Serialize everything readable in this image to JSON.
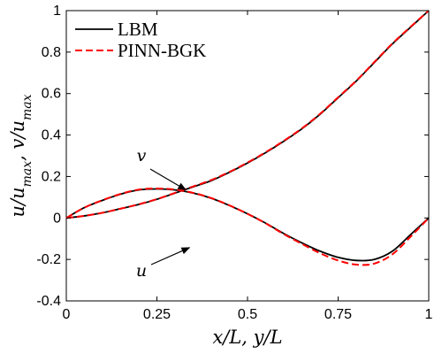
{
  "chart_data": {
    "type": "line",
    "xlabel": "x/L, y/L",
    "ylabel": "u/u_max, v/u_max",
    "xlim": [
      0,
      1
    ],
    "ylim": [
      -0.4,
      1
    ],
    "xticks": [
      0,
      0.25,
      0.5,
      0.75,
      1
    ],
    "yticks": [
      -0.4,
      -0.2,
      0,
      0.2,
      0.4,
      0.6,
      0.8,
      1
    ],
    "xtick_labels": [
      "0",
      "0.25",
      "0.5",
      "0.75",
      "1"
    ],
    "ytick_labels": [
      "-0.4",
      "-0.2",
      "0",
      "0.2",
      "0.4",
      "0.6",
      "0.8",
      "1"
    ],
    "legend_position": "top-left",
    "grid": false,
    "series": [
      {
        "name": "LBM",
        "color": "#000000",
        "style": "solid",
        "curves": {
          "u": {
            "x": [
              0,
              0.05,
              0.1,
              0.15,
              0.2,
              0.25,
              0.3,
              0.35,
              0.4,
              0.45,
              0.5,
              0.55,
              0.6,
              0.65,
              0.7,
              0.75,
              0.8,
              0.85,
              0.9,
              0.95,
              1.0
            ],
            "y": [
              0,
              0.01,
              0.025,
              0.045,
              0.065,
              0.09,
              0.12,
              0.15,
              0.18,
              0.22,
              0.265,
              0.315,
              0.37,
              0.43,
              0.5,
              0.58,
              0.66,
              0.75,
              0.84,
              0.92,
              1.0
            ]
          },
          "v": {
            "x": [
              0,
              0.05,
              0.1,
              0.15,
              0.2,
              0.25,
              0.3,
              0.35,
              0.4,
              0.45,
              0.5,
              0.55,
              0.6,
              0.65,
              0.7,
              0.75,
              0.8,
              0.85,
              0.9,
              0.95,
              1.0
            ],
            "y": [
              0,
              0.05,
              0.085,
              0.115,
              0.135,
              0.14,
              0.135,
              0.12,
              0.095,
              0.06,
              0.02,
              -0.025,
              -0.075,
              -0.12,
              -0.16,
              -0.19,
              -0.205,
              -0.2,
              -0.16,
              -0.08,
              0.0
            ]
          }
        }
      },
      {
        "name": "PINN-BGK",
        "color": "#ff0000",
        "style": "dashed",
        "curves": {
          "u": {
            "x": [
              0,
              0.05,
              0.1,
              0.15,
              0.2,
              0.25,
              0.3,
              0.35,
              0.4,
              0.45,
              0.5,
              0.55,
              0.6,
              0.65,
              0.7,
              0.75,
              0.8,
              0.85,
              0.9,
              0.95,
              1.0
            ],
            "y": [
              0,
              0.01,
              0.025,
              0.045,
              0.066,
              0.091,
              0.121,
              0.152,
              0.183,
              0.222,
              0.267,
              0.317,
              0.372,
              0.432,
              0.502,
              0.582,
              0.662,
              0.752,
              0.842,
              0.922,
              1.0
            ]
          },
          "v": {
            "x": [
              0,
              0.05,
              0.1,
              0.15,
              0.2,
              0.25,
              0.3,
              0.35,
              0.4,
              0.45,
              0.5,
              0.55,
              0.6,
              0.65,
              0.7,
              0.75,
              0.8,
              0.85,
              0.9,
              0.95,
              1.0
            ],
            "y": [
              0,
              0.05,
              0.086,
              0.116,
              0.137,
              0.142,
              0.137,
              0.121,
              0.096,
              0.061,
              0.02,
              -0.026,
              -0.078,
              -0.125,
              -0.17,
              -0.205,
              -0.225,
              -0.22,
              -0.175,
              -0.09,
              0.0
            ]
          }
        }
      }
    ],
    "annotations": [
      {
        "text": "v",
        "target_x": 0.33,
        "target_y": 0.135
      },
      {
        "text": "u",
        "target_x": 0.34,
        "target_y": 0.143
      }
    ]
  }
}
